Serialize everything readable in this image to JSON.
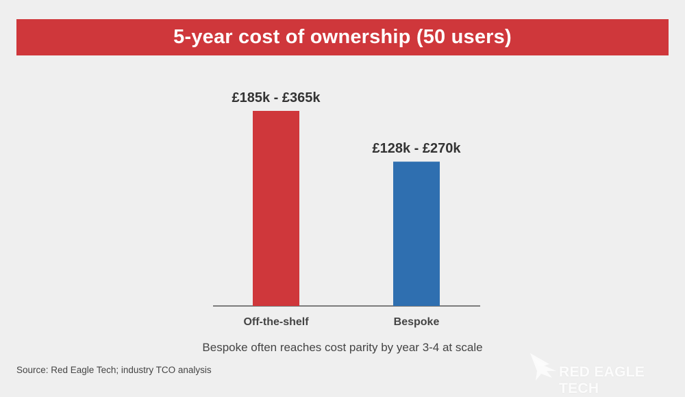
{
  "header": {
    "title": "5-year cost of ownership (50 users)"
  },
  "chart_data": {
    "type": "bar",
    "title": "5-year cost of ownership (50 users)",
    "categories": [
      "Off-the-shelf",
      "Bespoke"
    ],
    "values": [
      365,
      270
    ],
    "value_ranges": [
      [
        185,
        365
      ],
      [
        128,
        270
      ]
    ],
    "data_labels": [
      "£185k - £365k",
      "£128k - £270k"
    ],
    "unit": "£k",
    "colors": [
      "#cf373b",
      "#2f6fb0"
    ],
    "xlabel": "",
    "ylabel": "",
    "grid": false
  },
  "caption": "Bespoke often reaches cost parity by year 3-4 at scale",
  "source": "Source: Red Eagle Tech; industry TCO analysis",
  "brand": {
    "name": "RED EAGLE TECH",
    "icon": "eagle-icon"
  },
  "colors": {
    "accent": "#cf373b",
    "secondary": "#2f6fb0",
    "background": "#efefef"
  }
}
